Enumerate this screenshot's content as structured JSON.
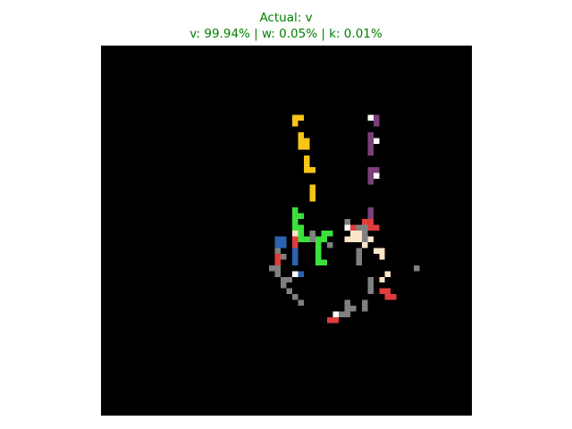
{
  "title": {
    "actual": "Actual: v",
    "probabilities": "v: 99.94% | w: 0.05% | k: 0.01%",
    "color": "#008000"
  },
  "image": {
    "background": "#000000",
    "grid": 64,
    "colors": {
      "Y": "#f5c518",
      "P": "#7b3f7b",
      "W": "#ffffff",
      "G": "#3be03b",
      "R": "#e03c3c",
      "B": "#2a63b0",
      "T": "#808080",
      "C": "#fbe5c8"
    },
    "rows": [
      "................................................................",
      "................................................................",
      "................................................................",
      "................................................................",
      "................................................................",
      "................................................................",
      "................................................................",
      "................................................................",
      ".................................YY...........WP................",
      ".................................Y.............P................",
      "................................................................",
      "..................................Y...........P.................",
      "..................................YY..........PW................",
      "..................................YY..........P.................",
      "..............................................P.................",
      "...................................Y............................",
      "...................................Y..........................  ",
      "...................................YY.........PP................",
      "..............................................PW................",
      "..............................................P.................",
      "....................................Y...........................",
      "....................................Y...........................",
      "....................................Y...........................",
      "................................................................",
      ".................................G............P.................",
      ".................................GG...........P.................",
      ".................................G........T..RR.................",
      ".................................GG.......WRTTRR................",
      ".................................CG.T.GG...CCT..................",
      "..............................BB.RGGTGG...CCCTC.................",
      "..............................BB.R...G.T.....C..................",
      "..............................T..B...G......T..CC...............",
      "..............................RT.B...G......T...C...............",
      "..............................R..B...GG.....T...................",
      ".............................TT.......................T.........",
      "..............................T..WB..............C..............",
      "...............................TT.............T.C...............",
      "...............................T..............T.................",
      "................................T.............T.RR..............",
      ".................................T...............RR.............",
      "..................................T.......T..T..................",
      "..........................................TT.T..................",
      "........................................WTT.....................",
      ".......................................RR.......................",
      "................................................................"
    ]
  }
}
